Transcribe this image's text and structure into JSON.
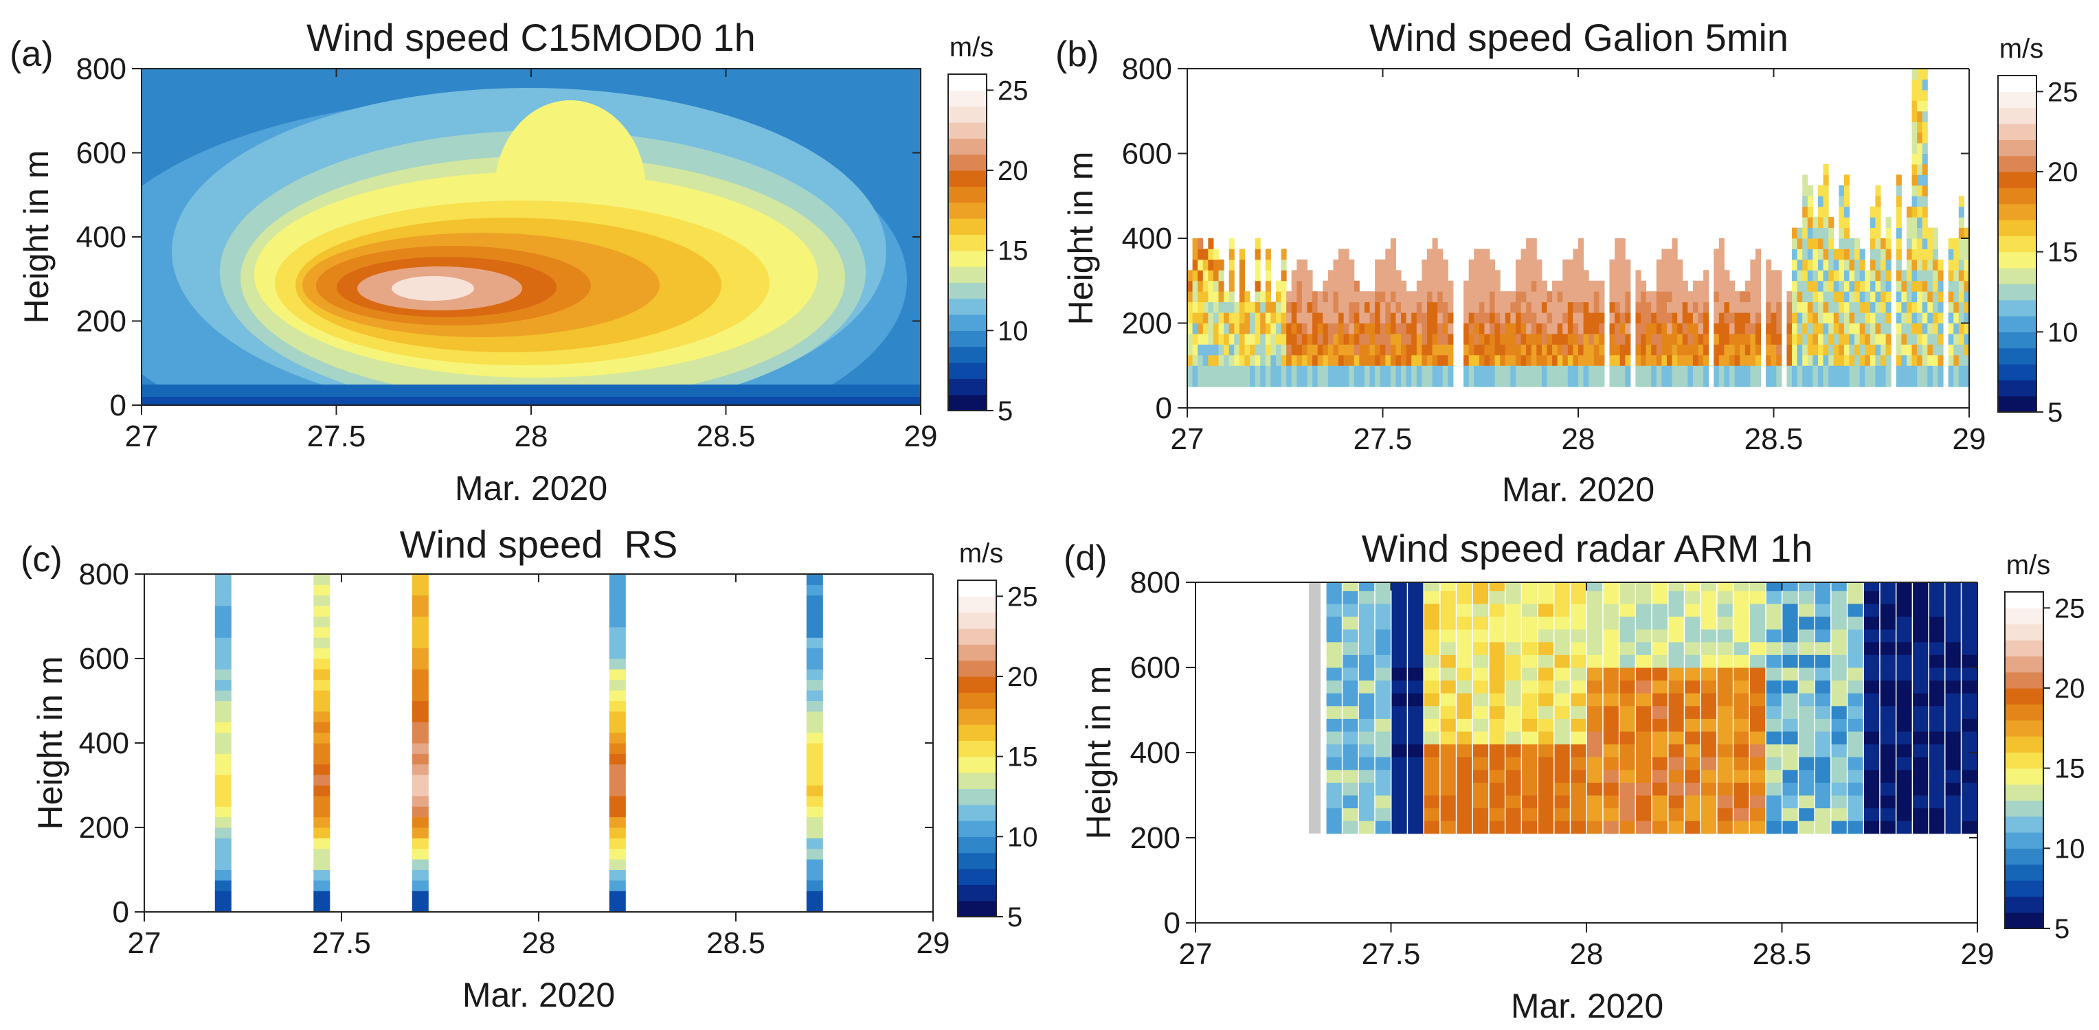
{
  "figure": {
    "colorbar": {
      "unit": "m/s",
      "ticks": [
        5,
        10,
        15,
        20,
        25
      ],
      "min": 5,
      "max": 26,
      "colors": [
        "#08115f",
        "#0a2a8a",
        "#0b4aa8",
        "#1666b8",
        "#2f86c8",
        "#4fa3d8",
        "#77bedf",
        "#a6d4c6",
        "#d4e7a0",
        "#f7f47a",
        "#f8e04e",
        "#f4c12f",
        "#eda225",
        "#e48519",
        "#d96a12",
        "#dd8652",
        "#e6a787",
        "#f0c8b4",
        "#f7e2d8",
        "#fbf1ec",
        "#ffffff"
      ]
    }
  },
  "chart_data": [
    {
      "panel": "(a)",
      "type": "heatmap",
      "title": "Wind speed C15MOD0 1h",
      "xlabel": "Mar. 2020",
      "ylabel": "Height in m",
      "xlim": [
        27,
        29
      ],
      "ylim": [
        0,
        800
      ],
      "xticks": [
        "27",
        "27.5",
        "28",
        "28.5",
        "29"
      ],
      "yticks": [
        "0",
        "200",
        "400",
        "600",
        "800"
      ],
      "style": "contour",
      "description_values": {
        "max_speed_ms": 25,
        "max_at_time": 27.75,
        "max_at_height_m": 280
      }
    },
    {
      "panel": "(b)",
      "type": "heatmap",
      "title": "Wind speed Galion 5min",
      "xlabel": "Mar. 2020",
      "ylabel": "Height in m",
      "xlim": [
        27,
        29
      ],
      "ylim": [
        0,
        800
      ],
      "xticks": [
        "27",
        "27.5",
        "28",
        "28.5",
        "29"
      ],
      "yticks": [
        "0",
        "200",
        "400",
        "600",
        "800"
      ],
      "style": "columns",
      "coverage": {
        "min_height_m": 50,
        "typical_top_m": 300,
        "max_top_m": 780
      }
    },
    {
      "panel": "(c)",
      "type": "heatmap",
      "title": "Wind speed  RS",
      "xlabel": "Mar. 2020",
      "ylabel": "Height in m",
      "xlim": [
        27,
        29
      ],
      "ylim": [
        0,
        800
      ],
      "xticks": [
        "27",
        "27.5",
        "28",
        "28.5",
        "29"
      ],
      "yticks": [
        "0",
        "200",
        "400",
        "600",
        "800"
      ],
      "style": "soundings",
      "launch_times": [
        27.2,
        27.45,
        27.7,
        28.2,
        28.7
      ]
    },
    {
      "panel": "(d)",
      "type": "heatmap",
      "title": "Wind speed radar ARM 1h",
      "xlabel": "Mar. 2020",
      "ylabel": "Height in m",
      "xlim": [
        27,
        29
      ],
      "ylim": [
        0,
        800
      ],
      "xticks": [
        "27",
        "27.5",
        "28",
        "28.5",
        "29"
      ],
      "yticks": [
        "0",
        "200",
        "400",
        "600",
        "800"
      ],
      "style": "hourly-columns",
      "coverage": {
        "start": 27.29,
        "end": 29.0,
        "min_height_m": 210,
        "max_height_m": 800,
        "missing_start": 27.29,
        "missing_end": 27.32
      }
    }
  ]
}
